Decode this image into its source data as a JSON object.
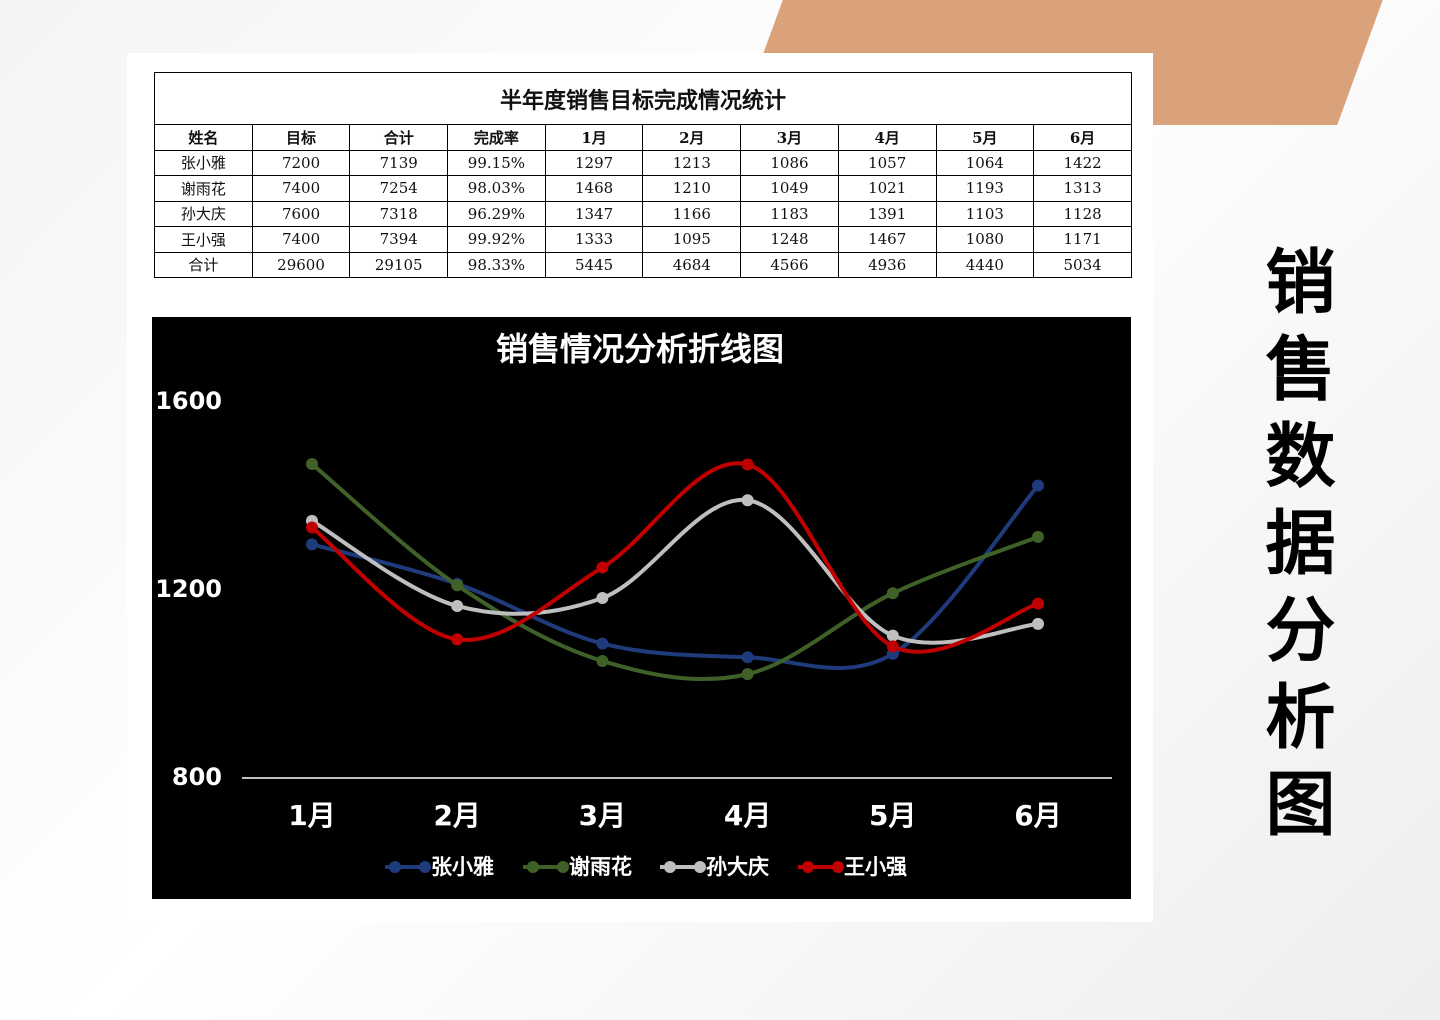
{
  "side_title": "销售数据分析图",
  "table": {
    "title": "半年度销售目标完成情况统计",
    "header": [
      "姓名",
      "目标",
      "合计",
      "完成率",
      "1月",
      "2月",
      "3月",
      "4月",
      "5月",
      "6月"
    ],
    "rows": [
      [
        "张小雅",
        "7200",
        "7139",
        "99.15%",
        "1297",
        "1213",
        "1086",
        "1057",
        "1064",
        "1422"
      ],
      [
        "谢雨花",
        "7400",
        "7254",
        "98.03%",
        "1468",
        "1210",
        "1049",
        "1021",
        "1193",
        "1313"
      ],
      [
        "孙大庆",
        "7600",
        "7318",
        "96.29%",
        "1347",
        "1166",
        "1183",
        "1391",
        "1103",
        "1128"
      ],
      [
        "王小强",
        "7400",
        "7394",
        "99.92%",
        "1333",
        "1095",
        "1248",
        "1467",
        "1080",
        "1171"
      ],
      [
        "合计",
        "29600",
        "29105",
        "98.33%",
        "5445",
        "4684",
        "4566",
        "4936",
        "4440",
        "5034"
      ]
    ]
  },
  "chart_data": {
    "type": "line",
    "title": "销售情况分析折线图",
    "categories": [
      "1月",
      "2月",
      "3月",
      "4月",
      "5月",
      "6月"
    ],
    "series": [
      {
        "name": "张小雅",
        "color": "#1f3b7c",
        "values": [
          1297,
          1213,
          1086,
          1057,
          1064,
          1422
        ]
      },
      {
        "name": "谢雨花",
        "color": "#3f6128",
        "values": [
          1468,
          1210,
          1049,
          1021,
          1193,
          1313
        ]
      },
      {
        "name": "孙大庆",
        "color": "#bfbfbf",
        "values": [
          1347,
          1166,
          1183,
          1391,
          1103,
          1128
        ]
      },
      {
        "name": "王小强",
        "color": "#c00000",
        "values": [
          1333,
          1095,
          1248,
          1467,
          1080,
          1171
        ]
      }
    ],
    "ylim": [
      800,
      1600
    ],
    "yticks": [
      800,
      1200,
      1600
    ],
    "grid": false,
    "smooth": true
  }
}
